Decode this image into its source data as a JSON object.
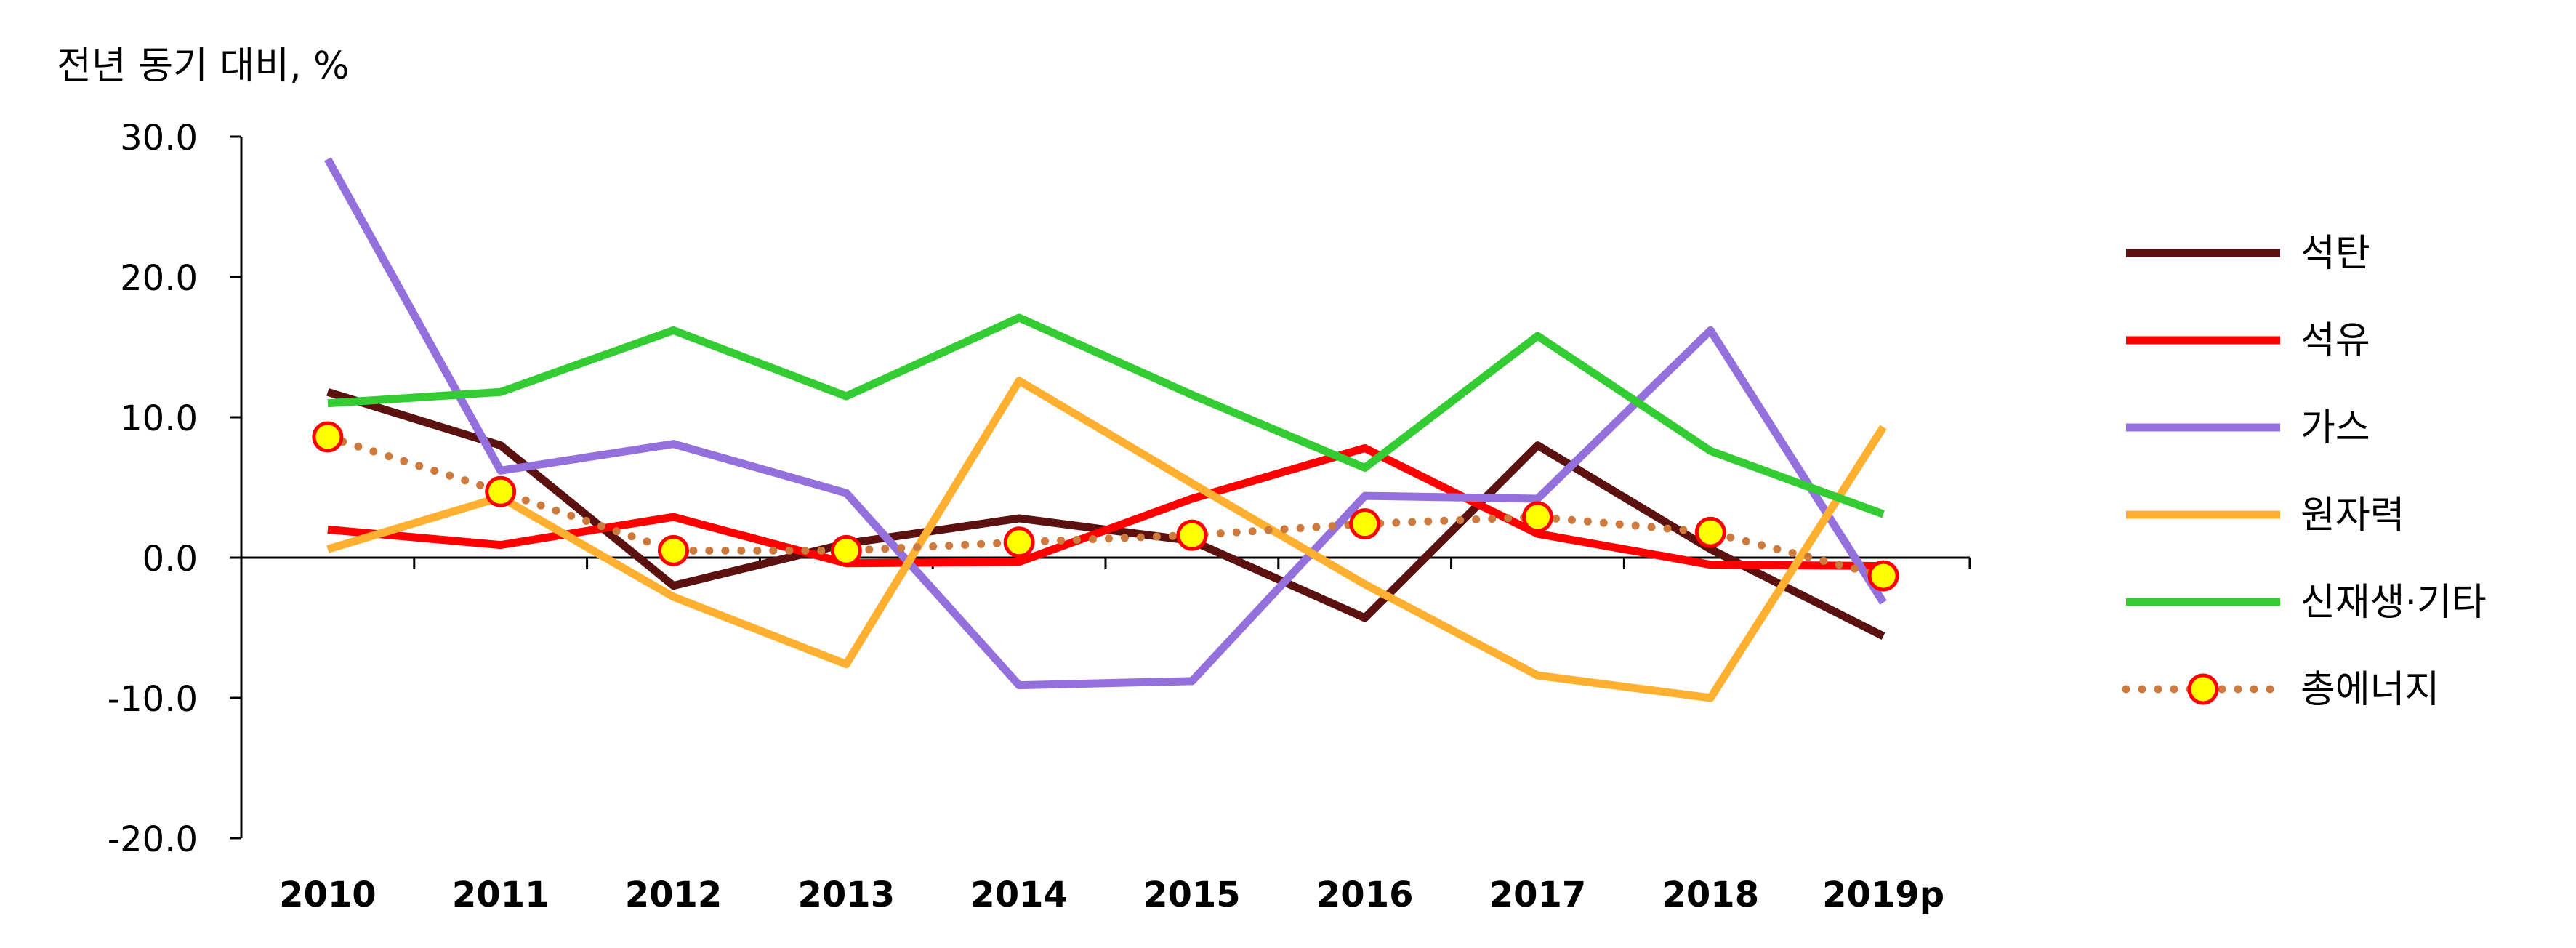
{
  "chart_data": {
    "type": "line",
    "title": "",
    "ylabel": "전년 동기 대비, %",
    "xlabel": "",
    "ylim": [
      -20,
      30
    ],
    "yticks": [
      30,
      20,
      10,
      0,
      -10,
      -20
    ],
    "ytick_labels": [
      "30.0",
      "20.0",
      "10.0",
      "0.0",
      "-10.0",
      "-20.0"
    ],
    "categories": [
      "2010",
      "2011",
      "2012",
      "2013",
      "2014",
      "2015",
      "2016",
      "2017",
      "2018",
      "2019p"
    ],
    "legend_position": "right",
    "grid": false,
    "series": [
      {
        "name": "석탄",
        "color": "#5c1111",
        "style": "solid",
        "values": [
          11.8,
          8.0,
          -2.0,
          1.0,
          2.8,
          1.2,
          -4.3,
          8.0,
          0.6,
          -5.6
        ]
      },
      {
        "name": "석유",
        "color": "#ff0000",
        "style": "solid",
        "values": [
          2.0,
          0.9,
          2.9,
          -0.4,
          -0.3,
          4.2,
          7.8,
          1.7,
          -0.5,
          -0.6
        ]
      },
      {
        "name": "가스",
        "color": "#9370db",
        "style": "solid",
        "values": [
          28.4,
          6.2,
          8.1,
          4.6,
          -9.1,
          -8.8,
          4.4,
          4.2,
          16.2,
          -3.2
        ]
      },
      {
        "name": "원자력",
        "color": "#ffb030",
        "style": "solid",
        "values": [
          0.6,
          4.3,
          -2.8,
          -7.6,
          12.6,
          5.3,
          -1.9,
          -8.4,
          -10.0,
          9.3
        ]
      },
      {
        "name": "신재생·기타",
        "color": "#33cc33",
        "style": "solid",
        "values": [
          11.0,
          11.8,
          16.2,
          11.5,
          17.1,
          11.6,
          6.4,
          15.8,
          7.6,
          3.1
        ]
      },
      {
        "name": "총에너지",
        "color": "#cc7a3d",
        "style": "dotted-markers",
        "marker_fill": "#ffff00",
        "marker_edge": "#ff0000",
        "values": [
          8.6,
          4.7,
          0.5,
          0.5,
          1.1,
          1.6,
          2.4,
          2.9,
          1.8,
          -1.3
        ]
      }
    ]
  }
}
